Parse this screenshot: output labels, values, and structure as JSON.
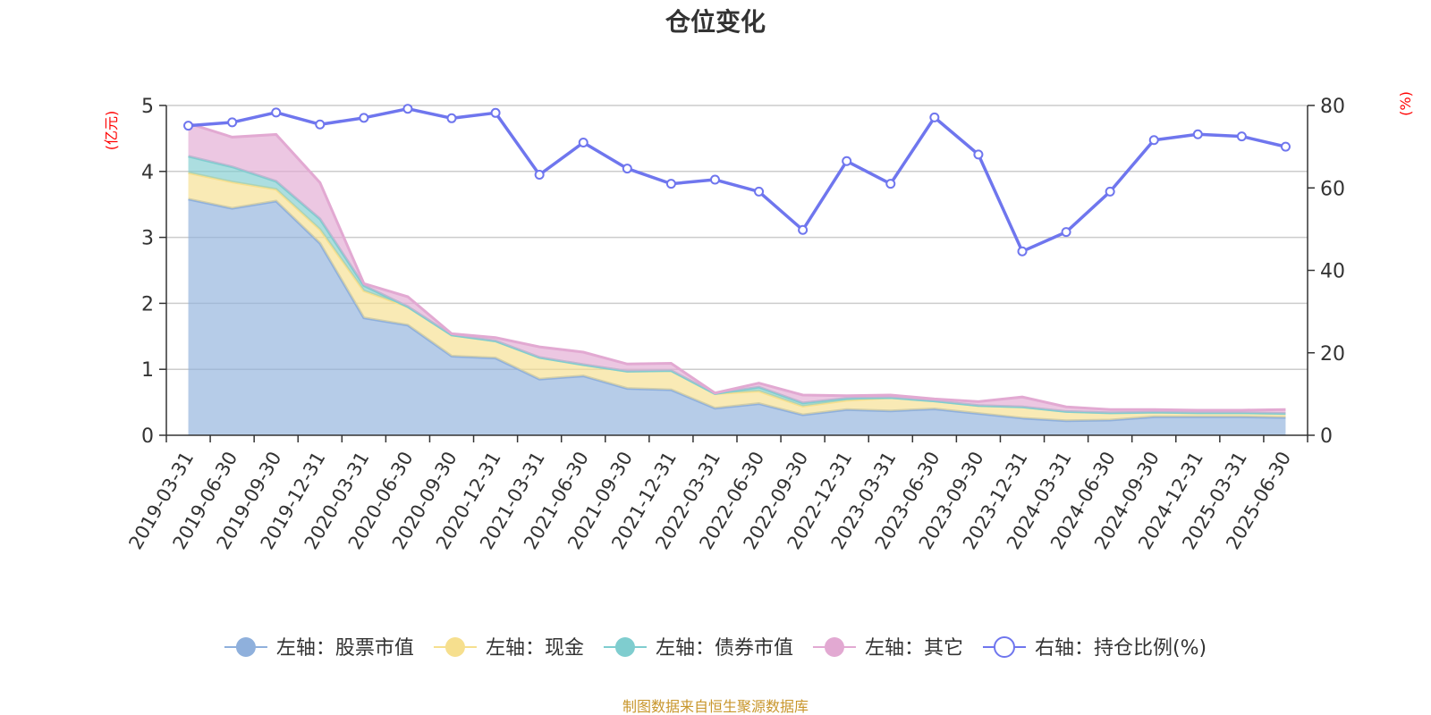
{
  "chart_data": {
    "type": "area",
    "title": "仓位变化",
    "y_left_unit": "(亿元)",
    "y_right_unit": "(%)",
    "y_left_range": [
      0,
      5
    ],
    "y_left_ticks": [
      "0",
      "1",
      "2",
      "3",
      "4",
      "5"
    ],
    "y_right_range": [
      0,
      80
    ],
    "y_right_ticks": [
      "0",
      "20",
      "40",
      "60",
      "80"
    ],
    "grid": true,
    "legend_position": "bottom",
    "source_note": "制图数据来自恒生聚源数据库",
    "x_tick_labels": [
      "2019-03-31",
      "2019-06-30",
      "2019-09-30",
      "2019-12-31",
      "2020-03-31",
      "2020-06-30",
      "2020-09-30",
      "2020-12-31",
      "2021-03-31",
      "2021-06-30",
      "2021-09-30",
      "2021-12-31",
      "2022-03-31",
      "2022-06-30",
      "2022-09-30",
      "2022-12-31",
      "2023-03-31",
      "2023-06-30",
      "2023-09-30",
      "2023-12-31",
      "2024-03-31",
      "2024-06-30",
      "2024-09-30",
      "2024-12-31",
      "2025-03-31",
      "2025-06-30"
    ],
    "x": [
      "2019-03-31",
      "2019-06-30",
      "2019-09-30",
      "2019-12-31",
      "2020-03-31",
      "2020-06-30",
      "2020-09-30",
      "2020-12-31",
      "2021-03-31",
      "2021-06-30",
      "2021-09-30",
      "2021-12-31",
      "2022-03-31",
      "2022-06-30",
      "2022-09-30",
      "2022-12-31",
      "2023-03-31",
      "2023-06-30",
      "2023-09-30",
      "2023-12-31",
      "2024-03-31",
      "2024-06-30",
      "2024-09-30",
      "2024-12-31",
      "2025-03-31",
      "2025-06-30"
    ],
    "stacked_series": [
      {
        "name": "左轴：股票市值",
        "axis": "left",
        "color": "#8fb0dc",
        "values": [
          3.58,
          3.44,
          3.55,
          2.91,
          1.78,
          1.67,
          1.2,
          1.17,
          0.85,
          0.9,
          0.71,
          0.69,
          0.41,
          0.48,
          0.31,
          0.39,
          0.37,
          0.4,
          0.33,
          0.26,
          0.22,
          0.23,
          0.28,
          0.28,
          0.28,
          0.27
        ]
      },
      {
        "name": "左轴：现金",
        "axis": "left",
        "color": "#f6df8e",
        "values": [
          0.4,
          0.4,
          0.18,
          0.21,
          0.41,
          0.28,
          0.32,
          0.26,
          0.33,
          0.17,
          0.26,
          0.29,
          0.22,
          0.19,
          0.13,
          0.14,
          0.2,
          0.12,
          0.12,
          0.17,
          0.14,
          0.11,
          0.07,
          0.06,
          0.06,
          0.06
        ]
      },
      {
        "name": "左轴：债券市值",
        "axis": "left",
        "color": "#7fcdcf",
        "values": [
          0.25,
          0.23,
          0.12,
          0.16,
          0.08,
          0.0,
          0.0,
          0.0,
          0.0,
          0.0,
          0.0,
          0.0,
          0.0,
          0.06,
          0.05,
          0.03,
          0.0,
          0.0,
          0.0,
          0.0,
          0.0,
          0.0,
          0.0,
          0.0,
          0.0,
          0.0
        ]
      },
      {
        "name": "左轴：其它",
        "axis": "left",
        "color": "#e2a9d2",
        "values": [
          0.5,
          0.45,
          0.71,
          0.55,
          0.03,
          0.15,
          0.02,
          0.05,
          0.16,
          0.19,
          0.11,
          0.11,
          0.01,
          0.06,
          0.12,
          0.04,
          0.04,
          0.03,
          0.06,
          0.15,
          0.07,
          0.05,
          0.04,
          0.04,
          0.04,
          0.06
        ]
      }
    ],
    "line_series": {
      "name": "右轴：持仓比例(%)",
      "axis": "right",
      "color": "#6f76ee",
      "values": [
        75.1,
        75.9,
        78.3,
        75.4,
        77.0,
        79.2,
        76.9,
        78.2,
        63.2,
        71.0,
        64.7,
        61.0,
        62.0,
        59.1,
        49.8,
        66.5,
        61.0,
        77.1,
        68.1,
        44.6,
        49.3,
        59.1,
        71.6,
        73.0,
        72.5,
        70.0
      ]
    }
  }
}
